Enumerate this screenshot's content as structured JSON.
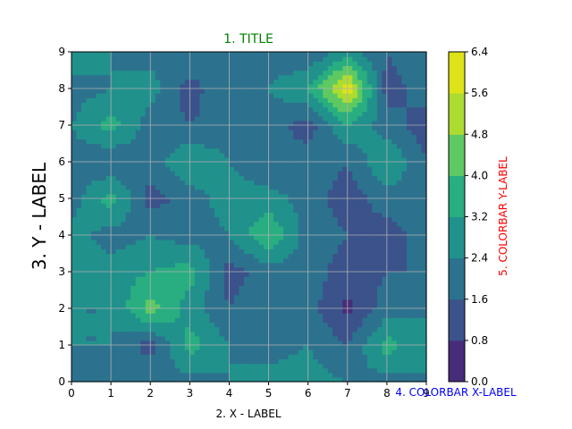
{
  "chart_data": {
    "type": "contour",
    "title": "1. TITLE",
    "xlabel": "2. X - LABEL",
    "ylabel": "3. Y - LABEL",
    "colorbar_xlabel": "4. COLORBAR X-LABEL",
    "colorbar_ylabel": "5. COLORBAR Y-LABEL",
    "title_color": "#008000",
    "colorbar_xlabel_color": "#0000ff",
    "colorbar_ylabel_color": "#ff0000",
    "x": [
      0,
      1,
      2,
      3,
      4,
      5,
      6,
      7,
      8,
      9
    ],
    "y": [
      0,
      1,
      2,
      3,
      4,
      5,
      6,
      7,
      8,
      9
    ],
    "xlim": [
      0,
      9
    ],
    "ylim": [
      0,
      9
    ],
    "xticks": [
      "0",
      "1",
      "2",
      "3",
      "4",
      "5",
      "6",
      "7",
      "8",
      "9"
    ],
    "yticks": [
      "0",
      "1",
      "2",
      "3",
      "4",
      "5",
      "6",
      "7",
      "8",
      "9"
    ],
    "grid": true,
    "z": [
      [
        2.4,
        2.0,
        2.4,
        2.0,
        2.4,
        2.8,
        2.8,
        2.4,
        2.0,
        2.4
      ],
      [
        2.4,
        2.4,
        1.2,
        3.6,
        2.4,
        2.0,
        2.4,
        1.6,
        3.6,
        2.4
      ],
      [
        2.4,
        2.4,
        4.4,
        2.8,
        1.6,
        2.4,
        2.0,
        0.6,
        2.0,
        2.4
      ],
      [
        3.2,
        2.8,
        3.2,
        3.6,
        1.2,
        2.0,
        2.0,
        1.2,
        1.6,
        1.6
      ],
      [
        2.8,
        2.0,
        2.4,
        2.0,
        2.4,
        4.0,
        2.0,
        1.6,
        1.2,
        2.0
      ],
      [
        2.0,
        3.6,
        1.2,
        2.0,
        2.8,
        2.8,
        2.0,
        1.2,
        2.0,
        2.4
      ],
      [
        2.0,
        1.6,
        2.0,
        3.2,
        2.4,
        1.6,
        2.0,
        1.6,
        3.2,
        1.6
      ],
      [
        2.4,
        3.6,
        2.0,
        1.6,
        2.0,
        2.0,
        1.2,
        3.2,
        2.0,
        1.2
      ],
      [
        2.0,
        2.4,
        2.8,
        1.2,
        2.4,
        2.4,
        3.2,
        6.2,
        1.2,
        2.0
      ],
      [
        3.2,
        2.4,
        2.0,
        2.4,
        2.0,
        2.0,
        1.6,
        2.8,
        1.6,
        2.4
      ]
    ],
    "levels": [
      0.0,
      0.8,
      1.6,
      2.4,
      3.2,
      4.0,
      4.8,
      5.6,
      6.4
    ],
    "level_labels": [
      "0.0",
      "0.8",
      "1.6",
      "2.4",
      "3.2",
      "4.0",
      "4.8",
      "5.6",
      "6.4"
    ],
    "level_colors": [
      "#472c7a",
      "#3b528b",
      "#2c728e",
      "#21918c",
      "#28ae80",
      "#5ec962",
      "#addc30",
      "#dde318"
    ]
  }
}
